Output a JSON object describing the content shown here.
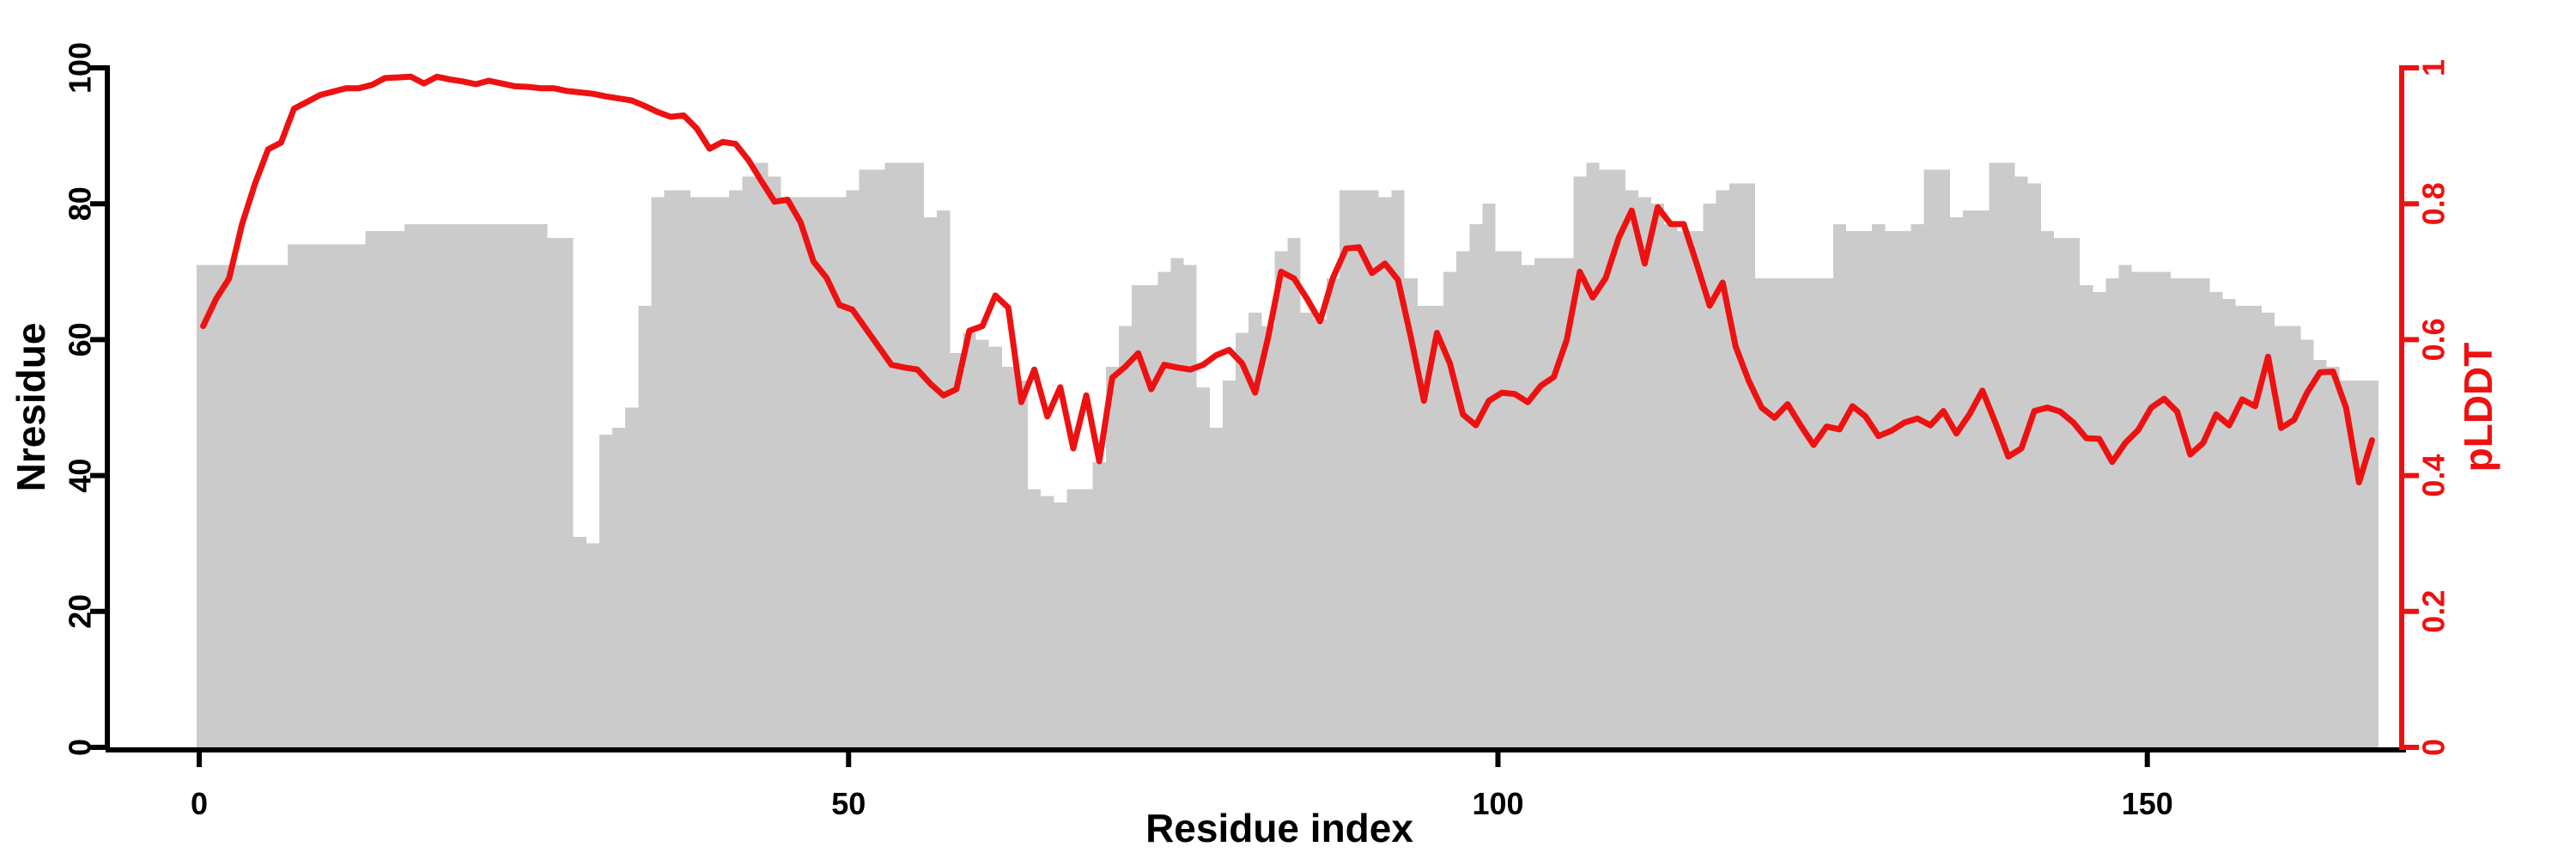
{
  "figure": {
    "background": "#ffffff",
    "axis_color_left": "#000000",
    "axis_color_right": "#ee1111"
  },
  "chart_data": {
    "type": "bar+line",
    "title": "",
    "xlabel": "Residue index",
    "ylabel_left": "Nresidue",
    "ylabel_right": "pLDDT",
    "x_description": "one bar per residue, residue index 0-167",
    "n_points": 168,
    "xlim": [
      0,
      168
    ],
    "ylim_left": [
      0,
      100
    ],
    "ylim_right": [
      0,
      1
    ],
    "grid": false,
    "legend": "none",
    "xticks": {
      "values": [
        0,
        50,
        100,
        150
      ],
      "labels": [
        "0",
        "50",
        "100",
        "150"
      ]
    },
    "yticks_left": {
      "values": [
        0,
        20,
        40,
        60,
        80,
        100
      ],
      "labels": [
        "0",
        "20",
        "40",
        "60",
        "80",
        "100"
      ]
    },
    "yticks_right": {
      "values": [
        0,
        0.2,
        0.4,
        0.6,
        0.8,
        1
      ],
      "labels": [
        "0",
        "0.2",
        "0.4",
        "0.6",
        "0.8",
        "1"
      ]
    },
    "series": [
      {
        "name": "Nresidue",
        "type": "bar",
        "axis": "left",
        "color": "#cbcbcb",
        "values": [
          71,
          71,
          71,
          71,
          71,
          71,
          71,
          74,
          74,
          74,
          74,
          74,
          74,
          76,
          76,
          76,
          77,
          77,
          77,
          77,
          77,
          77,
          77,
          77,
          77,
          77,
          77,
          75,
          75,
          31,
          30,
          46,
          47,
          50,
          65,
          81,
          82,
          82,
          81,
          81,
          81,
          82,
          84,
          86,
          84,
          81,
          81,
          81,
          81,
          81,
          82,
          85,
          85,
          86,
          86,
          86,
          78,
          79,
          58,
          61,
          60,
          59,
          56,
          54,
          38,
          37,
          36,
          38,
          38,
          42,
          56,
          62,
          68,
          68,
          70,
          72,
          71,
          53,
          47,
          54,
          61,
          64,
          62,
          73,
          75,
          64,
          63,
          69,
          82,
          82,
          82,
          81,
          82,
          69,
          65,
          65,
          70,
          73,
          77,
          80,
          73,
          73,
          71,
          72,
          72,
          72,
          84,
          86,
          85,
          85,
          82,
          81,
          80,
          77,
          76,
          76,
          80,
          82,
          83,
          83,
          69,
          69,
          69,
          69,
          69,
          69,
          77,
          76,
          76,
          77,
          76,
          76,
          77,
          85,
          85,
          78,
          79,
          79,
          86,
          86,
          84,
          83,
          76,
          75,
          75,
          68,
          67,
          69,
          71,
          70,
          70,
          70,
          69,
          69,
          69,
          67,
          66,
          65,
          65,
          64,
          62,
          62,
          60,
          57,
          56,
          54,
          54,
          54
        ]
      },
      {
        "name": "pLDDT",
        "type": "line",
        "axis": "right",
        "color": "#ee1111",
        "values": [
          0.62,
          0.66,
          0.69,
          0.77,
          0.83,
          0.88,
          0.89,
          0.94,
          0.95,
          0.96,
          0.965,
          0.97,
          0.97,
          0.975,
          0.985,
          0.986,
          0.987,
          0.977,
          0.987,
          0.983,
          0.98,
          0.976,
          0.981,
          0.977,
          0.973,
          0.972,
          0.97,
          0.97,
          0.966,
          0.964,
          0.962,
          0.958,
          0.955,
          0.952,
          0.944,
          0.935,
          0.928,
          0.93,
          0.911,
          0.881,
          0.891,
          0.888,
          0.864,
          0.833,
          0.803,
          0.806,
          0.773,
          0.715,
          0.691,
          0.651,
          0.644,
          0.617,
          0.59,
          0.563,
          0.559,
          0.556,
          0.535,
          0.518,
          0.527,
          0.613,
          0.62,
          0.665,
          0.647,
          0.508,
          0.556,
          0.487,
          0.53,
          0.44,
          0.518,
          0.421,
          0.544,
          0.56,
          0.58,
          0.527,
          0.563,
          0.559,
          0.556,
          0.563,
          0.577,
          0.585,
          0.565,
          0.522,
          0.603,
          0.7,
          0.69,
          0.66,
          0.627,
          0.691,
          0.734,
          0.736,
          0.698,
          0.712,
          0.688,
          0.603,
          0.51,
          0.61,
          0.565,
          0.49,
          0.474,
          0.51,
          0.522,
          0.52,
          0.508,
          0.532,
          0.545,
          0.6,
          0.7,
          0.662,
          0.691,
          0.75,
          0.79,
          0.712,
          0.795,
          0.77,
          0.77,
          0.712,
          0.65,
          0.684,
          0.59,
          0.54,
          0.5,
          0.485,
          0.505,
          0.474,
          0.445,
          0.472,
          0.468,
          0.502,
          0.487,
          0.458,
          0.466,
          0.478,
          0.484,
          0.474,
          0.495,
          0.462,
          0.49,
          0.525,
          0.478,
          0.428,
          0.44,
          0.495,
          0.5,
          0.494,
          0.478,
          0.455,
          0.454,
          0.42,
          0.448,
          0.467,
          0.5,
          0.513,
          0.494,
          0.431,
          0.448,
          0.49,
          0.474,
          0.512,
          0.502,
          0.575,
          0.47,
          0.482,
          0.522,
          0.552,
          0.553,
          0.5,
          0.39,
          0.452
        ]
      }
    ]
  }
}
